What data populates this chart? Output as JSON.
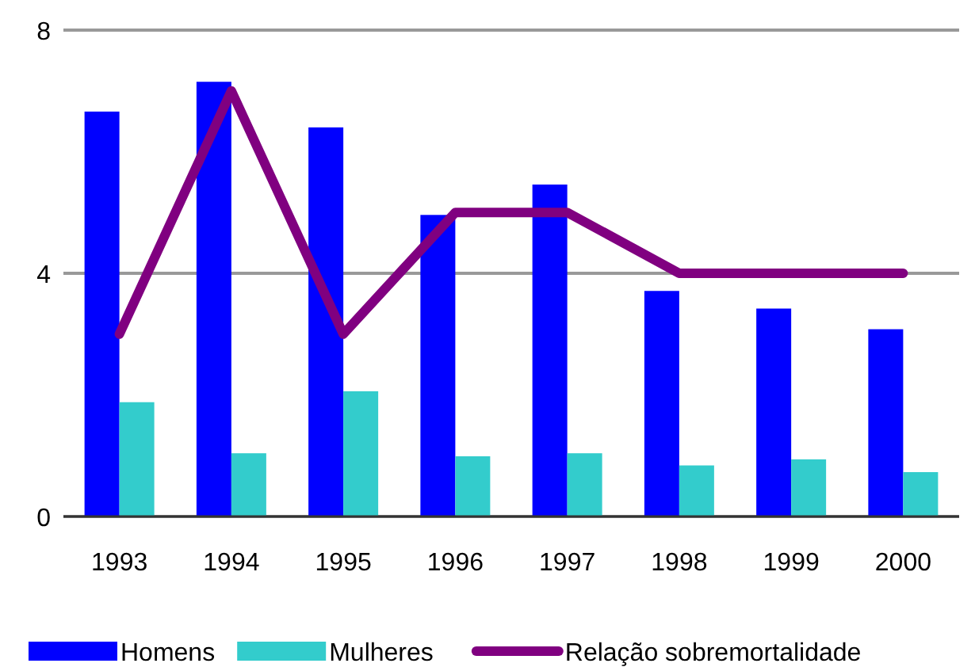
{
  "chart_data": {
    "type": "bar",
    "categories": [
      "1993",
      "1994",
      "1995",
      "1996",
      "1997",
      "1998",
      "1999",
      "2000"
    ],
    "series": [
      {
        "name": "Homens",
        "color": "#0000ff",
        "values": [
          6.66,
          7.15,
          6.4,
          4.96,
          5.46,
          3.71,
          3.42,
          3.08
        ]
      },
      {
        "name": "Mulheres",
        "color": "#33cccc",
        "values": [
          1.88,
          1.04,
          2.06,
          0.99,
          1.04,
          0.84,
          0.94,
          0.73
        ]
      },
      {
        "name": "Relação sobremortalidade",
        "type": "line",
        "color": "#800080",
        "values": [
          3,
          7,
          3,
          5,
          5,
          4,
          4,
          4
        ]
      }
    ],
    "ylim": [
      0,
      8
    ],
    "yticks": [
      0,
      4,
      8
    ],
    "grid": "y",
    "legend": "bottom"
  }
}
